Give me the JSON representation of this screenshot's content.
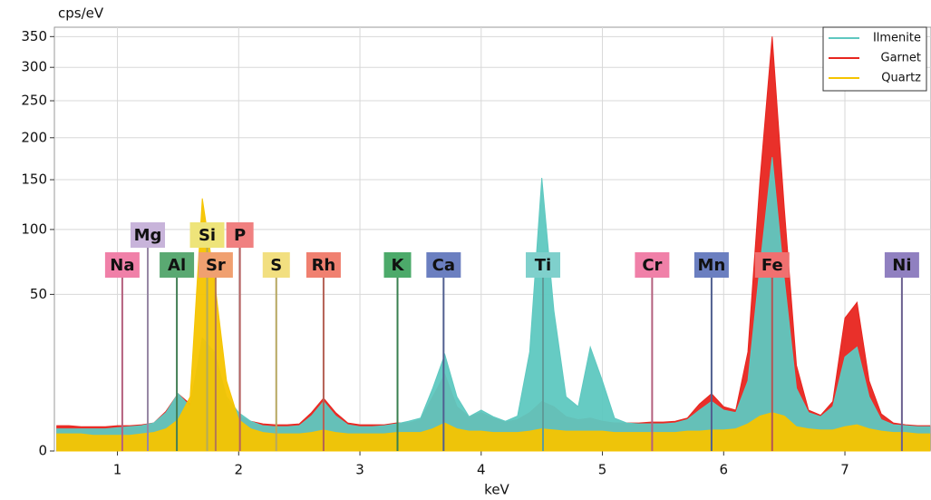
{
  "chart_data": {
    "type": "area",
    "xlabel": "keV",
    "ylabel": "cps/eV",
    "yscale": "sqrt",
    "xlim": [
      0.48,
      7.71
    ],
    "ylim": [
      0,
      366
    ],
    "xticks": [
      1,
      2,
      3,
      4,
      5,
      6,
      7
    ],
    "yticks": [
      0,
      50,
      100,
      150,
      200,
      250,
      300,
      350
    ],
    "grid": true,
    "legend": "upper right",
    "x": [
      0.5,
      0.6,
      0.7,
      0.8,
      0.9,
      1.0,
      1.1,
      1.2,
      1.3,
      1.4,
      1.5,
      1.6,
      1.7,
      1.8,
      1.9,
      2.0,
      2.1,
      2.2,
      2.3,
      2.4,
      2.5,
      2.6,
      2.7,
      2.8,
      2.9,
      3.0,
      3.1,
      3.2,
      3.3,
      3.4,
      3.5,
      3.6,
      3.7,
      3.8,
      3.9,
      4.0,
      4.1,
      4.2,
      4.3,
      4.4,
      4.5,
      4.6,
      4.7,
      4.8,
      4.9,
      5.0,
      5.1,
      5.2,
      5.3,
      5.4,
      5.5,
      5.6,
      5.7,
      5.8,
      5.9,
      6.0,
      6.1,
      6.2,
      6.3,
      6.4,
      6.5,
      6.6,
      6.7,
      6.8,
      6.9,
      7.0,
      7.1,
      7.2,
      7.3,
      7.4,
      7.5,
      7.6,
      7.7
    ],
    "series": [
      {
        "name": "Ilmenite",
        "color": "#5ec8c0",
        "values": [
          1,
          1,
          1,
          1,
          1,
          1.1,
          1.2,
          1.3,
          1.6,
          3,
          6.7,
          4,
          26,
          20,
          6,
          3,
          1.8,
          1.3,
          1.2,
          1.2,
          1.3,
          2.5,
          5,
          2.5,
          1.4,
          1.2,
          1.2,
          1.3,
          1.5,
          1.8,
          2.2,
          8,
          19,
          6,
          2.4,
          3.4,
          2.4,
          1.8,
          2.5,
          20,
          152,
          40,
          6,
          4,
          22,
          10,
          2.2,
          1.6,
          1.5,
          1.5,
          1.5,
          1.6,
          2,
          3.4,
          5,
          3.4,
          3,
          10,
          70,
          176,
          60,
          8,
          3,
          2.4,
          4,
          18,
          22,
          6,
          2,
          1.4,
          1.3,
          1.2,
          1.2
        ]
      },
      {
        "name": "Garnet",
        "color": "#e8251f",
        "values": [
          1.3,
          1.3,
          1.2,
          1.2,
          1.2,
          1.3,
          1.3,
          1.4,
          1.6,
          3.2,
          6.7,
          4.5,
          24,
          18,
          5,
          2.5,
          1.8,
          1.5,
          1.4,
          1.4,
          1.5,
          3,
          5.7,
          3,
          1.6,
          1.4,
          1.4,
          1.4,
          1.6,
          1.6,
          2,
          6,
          12,
          4,
          2.4,
          3,
          2.2,
          1.7,
          2,
          3,
          5,
          4,
          2.4,
          2,
          2.2,
          1.8,
          1.6,
          1.6,
          1.6,
          1.7,
          1.7,
          1.8,
          2.2,
          4.5,
          6.7,
          4,
          3.4,
          20,
          150,
          350,
          120,
          15,
          3.4,
          2.6,
          5,
          36,
          45,
          10,
          2.8,
          1.6,
          1.4,
          1.3,
          1.3
        ]
      },
      {
        "name": "Quartz",
        "color": "#f5c400",
        "values": [
          0.6,
          0.6,
          0.6,
          0.5,
          0.5,
          0.5,
          0.5,
          0.6,
          0.7,
          1,
          2,
          6,
          130,
          60,
          10,
          2,
          1,
          0.7,
          0.6,
          0.6,
          0.6,
          0.7,
          0.9,
          0.7,
          0.6,
          0.6,
          0.6,
          0.6,
          0.7,
          0.7,
          0.7,
          1,
          1.6,
          1,
          0.8,
          0.8,
          0.7,
          0.7,
          0.7,
          0.8,
          1,
          0.9,
          0.8,
          0.8,
          0.8,
          0.8,
          0.7,
          0.7,
          0.7,
          0.7,
          0.7,
          0.7,
          0.8,
          0.8,
          0.9,
          0.9,
          1,
          1.5,
          2.5,
          3,
          2.5,
          1.2,
          1,
          0.9,
          0.9,
          1.2,
          1.4,
          1,
          0.8,
          0.7,
          0.7,
          0.6,
          0.6
        ]
      }
    ],
    "elements": [
      {
        "label": "Na",
        "x": 1.04,
        "color": "#f080a8"
      },
      {
        "label": "Mg",
        "x": 1.25,
        "color": "#c8b4da"
      },
      {
        "label": "Al",
        "x": 1.49,
        "color": "#5aa972"
      },
      {
        "label": "Si",
        "x": 1.74,
        "color": "#eee47a"
      },
      {
        "label": "Sr",
        "x": 1.81,
        "color": "#f0a070"
      },
      {
        "label": "P",
        "x": 2.01,
        "color": "#f08080"
      },
      {
        "label": "S",
        "x": 2.31,
        "color": "#f2df80"
      },
      {
        "label": "Rh",
        "x": 2.7,
        "color": "#f08070"
      },
      {
        "label": "K",
        "x": 3.31,
        "color": "#4caa6a"
      },
      {
        "label": "Ca",
        "x": 3.69,
        "color": "#6b7fc0"
      },
      {
        "label": "Ti",
        "x": 4.51,
        "color": "#7fd0cc"
      },
      {
        "label": "Cr",
        "x": 5.41,
        "color": "#f080a8"
      },
      {
        "label": "Mn",
        "x": 5.9,
        "color": "#6b7fc0"
      },
      {
        "label": "Fe",
        "x": 6.4,
        "color": "#f07070"
      },
      {
        "label": "Ni",
        "x": 7.47,
        "color": "#9080c0"
      }
    ]
  }
}
